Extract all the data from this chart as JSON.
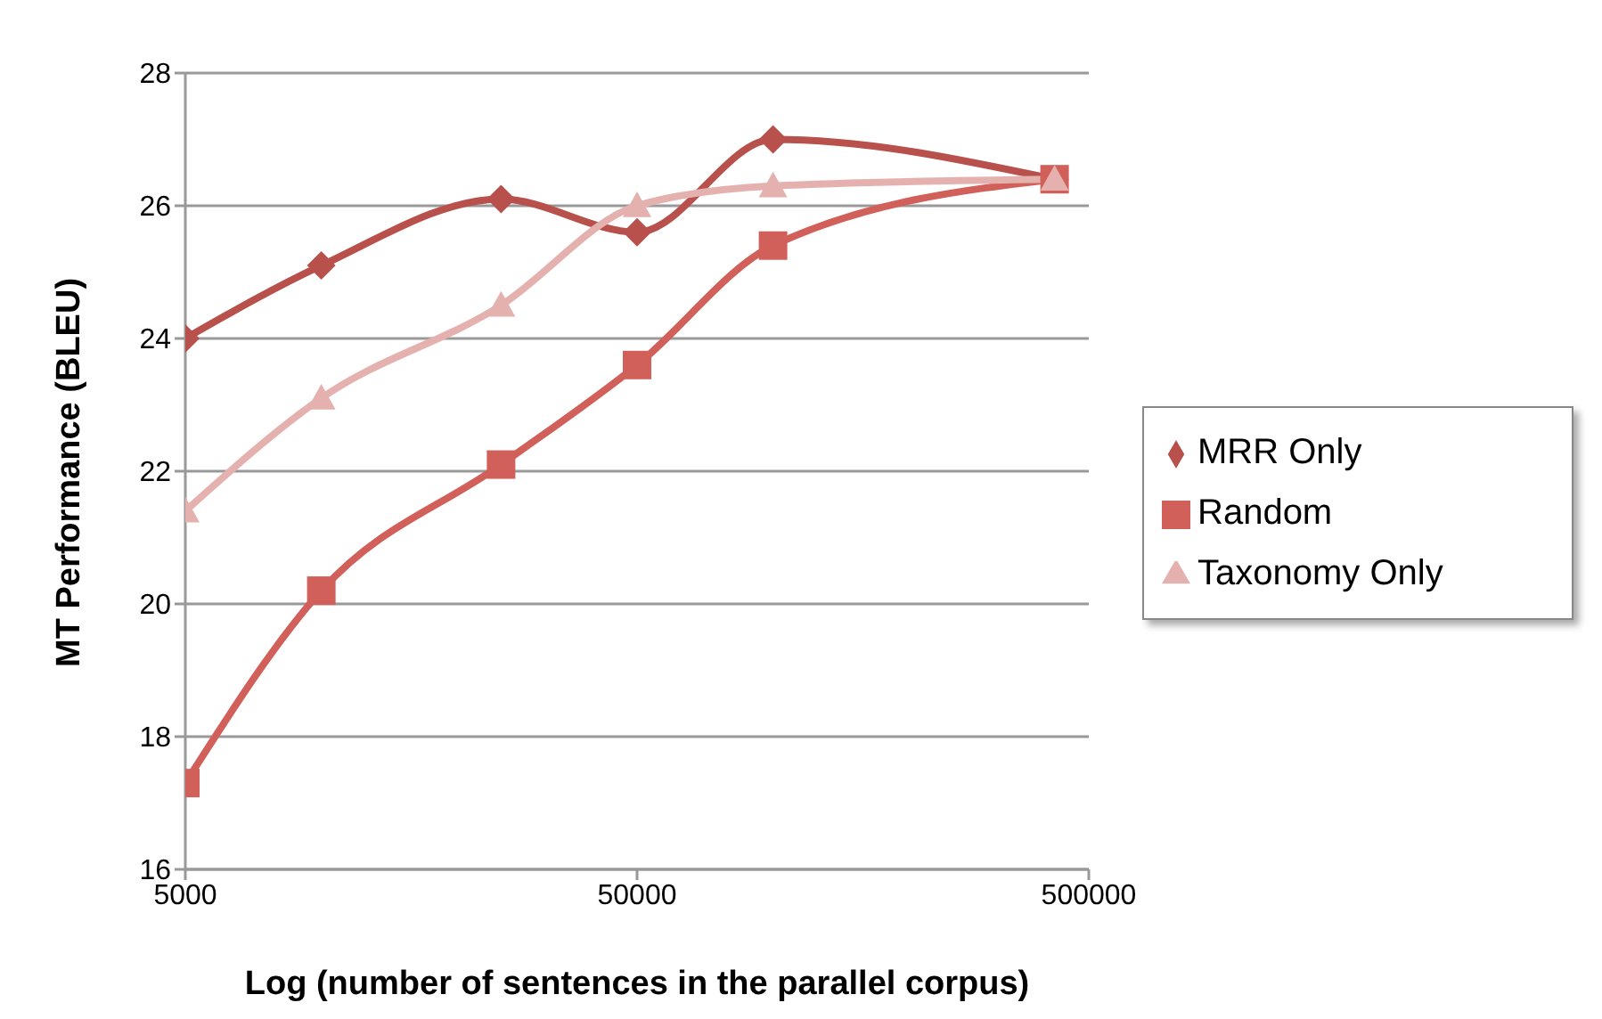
{
  "chart_data": {
    "type": "line",
    "xlabel": "Log (number of sentences in the parallel corpus)",
    "ylabel": "MT Performance (BLEU)",
    "x": [
      5000,
      10000,
      25000,
      50000,
      100000,
      420000
    ],
    "series": [
      {
        "name": "MRR Only",
        "color": "#b8504b",
        "marker": "diamond",
        "values": [
          24.0,
          25.1,
          26.1,
          25.6,
          27.0,
          26.4
        ]
      },
      {
        "name": "Random",
        "color": "#d2605a",
        "marker": "square",
        "values": [
          17.3,
          20.2,
          22.1,
          23.6,
          25.4,
          26.4
        ]
      },
      {
        "name": "Taxonomy Only",
        "color": "#e4b1ae",
        "marker": "triangle",
        "values": [
          21.4,
          23.1,
          24.5,
          26.0,
          26.3,
          26.4
        ]
      }
    ],
    "log": "x",
    "xlim": [
      5000,
      500000
    ],
    "xticks": [
      5000,
      50000,
      500000
    ],
    "ylim": [
      16,
      28
    ],
    "yticks": [
      16,
      18,
      20,
      22,
      24,
      26,
      28
    ],
    "grid": "y",
    "legend": "right"
  }
}
